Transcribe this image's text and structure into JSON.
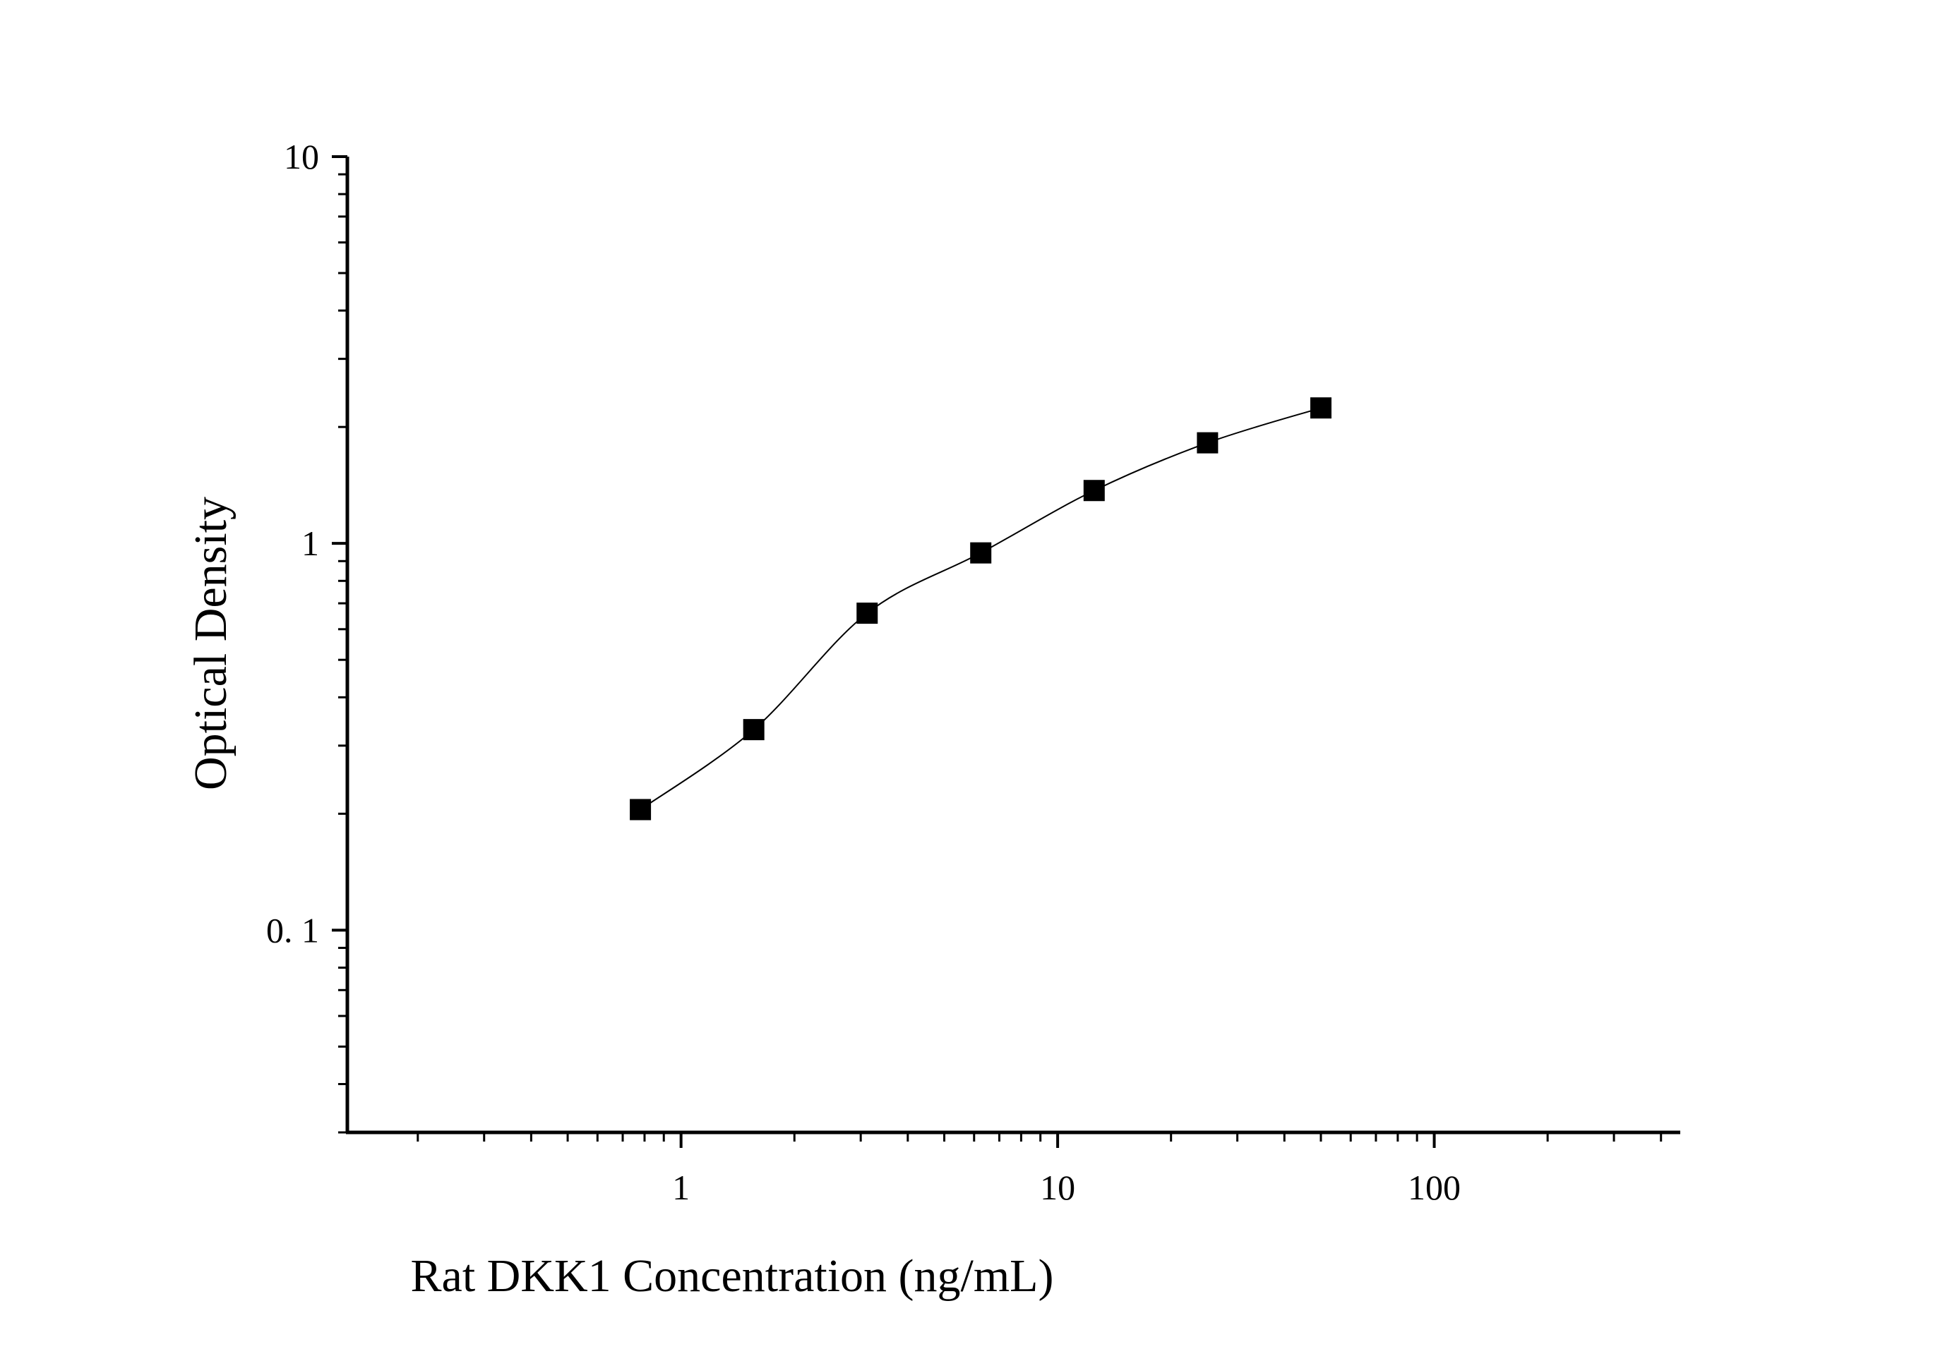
{
  "chart_data": {
    "type": "scatter",
    "title": "",
    "xlabel": "Rat DKK1 Concentration (ng/mL)",
    "ylabel": "Optical Density",
    "x_scale": "log",
    "y_scale": "log",
    "xlim": [
      0.13,
      450
    ],
    "ylim": [
      0.03,
      10
    ],
    "x_tick_labels": [
      {
        "value": 1,
        "label": "1"
      },
      {
        "value": 10,
        "label": "10"
      },
      {
        "value": 100,
        "label": "100"
      }
    ],
    "y_tick_labels": [
      {
        "value": 0.1,
        "label": "0. 1"
      },
      {
        "value": 1,
        "label": "1"
      },
      {
        "value": 10,
        "label": "10"
      }
    ],
    "grid": false,
    "legend": "none",
    "colors": {
      "points": "#000000",
      "curve": "#000000",
      "axes": "#000000"
    },
    "series": [
      {
        "marker": "square",
        "has_fit_curve": true,
        "x": [
          0.78,
          1.56,
          3.12,
          6.25,
          12.5,
          25,
          50
        ],
        "y": [
          0.205,
          0.33,
          0.66,
          0.945,
          1.37,
          1.82,
          2.24
        ]
      }
    ]
  }
}
